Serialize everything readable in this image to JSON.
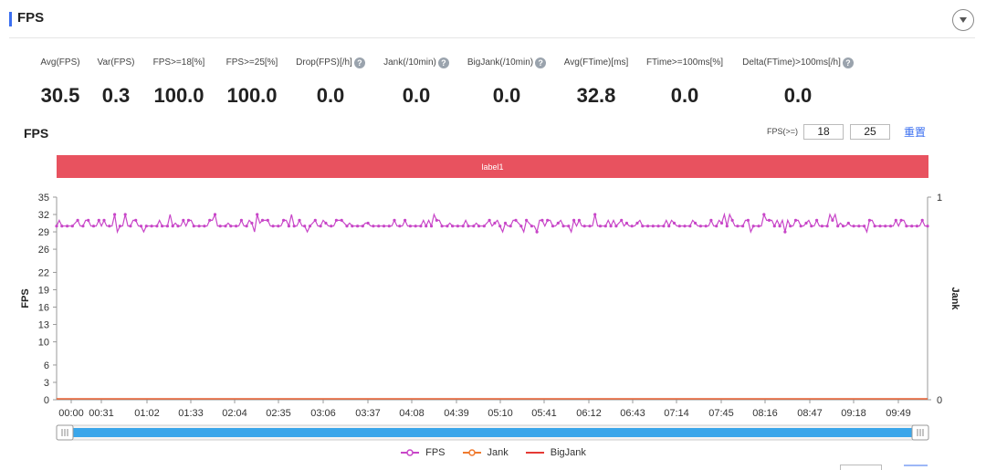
{
  "header": {
    "title": "FPS"
  },
  "stats": [
    {
      "label": "Avg(FPS)",
      "value": "30.5",
      "help": false
    },
    {
      "label": "Var(FPS)",
      "value": "0.3",
      "help": false
    },
    {
      "label": "FPS>=18[%]",
      "value": "100.0",
      "help": false
    },
    {
      "label": "FPS>=25[%]",
      "value": "100.0",
      "help": false
    },
    {
      "label": "Drop(FPS)[/h]",
      "value": "0.0",
      "help": true
    },
    {
      "label": "Jank(/10min)",
      "value": "0.0",
      "help": true
    },
    {
      "label": "BigJank(/10min)",
      "value": "0.0",
      "help": true
    },
    {
      "label": "Avg(FTime)[ms]",
      "value": "32.8",
      "help": false
    },
    {
      "label": "FTime>=100ms[%]",
      "value": "0.0",
      "help": false
    },
    {
      "label": "Delta(FTime)>100ms[/h]",
      "value": "0.0",
      "help": true
    }
  ],
  "chart_section": {
    "title": "FPS",
    "filter": {
      "label": "FPS(>=)",
      "value1": "18",
      "value2": "25",
      "reset_label": "重置"
    },
    "label_band": "label1"
  },
  "colors": {
    "fps": "#c846c8",
    "jank": "#f07a2e",
    "bigjank": "#e53935",
    "band": "#e8525f",
    "accent": "#3b6ff0",
    "slider": "#3aa6ea"
  },
  "chart_data": {
    "type": "line",
    "title": "",
    "xlabel": "",
    "ylabel": "FPS",
    "y2label": "Jank",
    "ylim": [
      0,
      35
    ],
    "y2lim": [
      0,
      1
    ],
    "yticks": [
      0,
      3,
      6,
      10,
      13,
      16,
      19,
      22,
      26,
      29,
      32,
      35
    ],
    "y2ticks": [
      0,
      1
    ],
    "xlim": [
      0,
      620
    ],
    "xticks": [
      "00:00",
      "00:31",
      "01:02",
      "01:33",
      "02:04",
      "02:35",
      "03:06",
      "03:37",
      "04:08",
      "04:39",
      "05:10",
      "05:41",
      "06:12",
      "06:43",
      "07:14",
      "07:45",
      "08:16",
      "08:47",
      "09:18",
      "09:49"
    ],
    "grid": false,
    "legend": "bottom-center",
    "series": [
      {
        "name": "FPS",
        "axis": "left",
        "mean": 30.5,
        "range": [
          29,
          32
        ]
      },
      {
        "name": "Jank",
        "axis": "right",
        "values": [
          0,
          0
        ]
      },
      {
        "name": "BigJank",
        "axis": "right",
        "values": [
          0,
          0
        ]
      }
    ]
  }
}
